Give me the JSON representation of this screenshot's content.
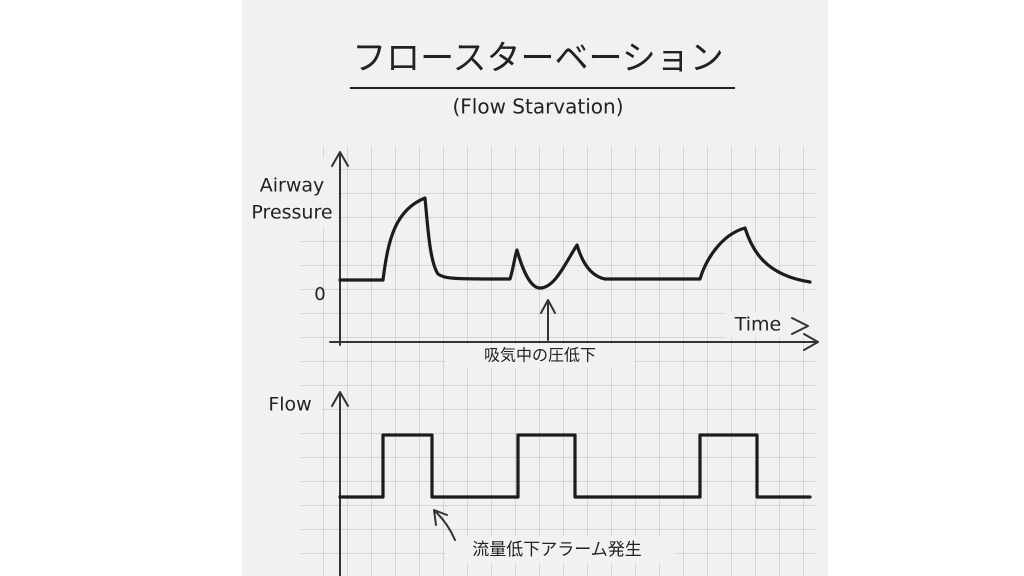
{
  "header": {
    "title": "フロースターベーション",
    "subtitle": "(Flow Starvation)"
  },
  "pressure_chart": {
    "y_label": [
      "Airway",
      "Pressure"
    ],
    "zero_label": "0",
    "x_label": "Time",
    "annotation": "吸気中の圧低下"
  },
  "flow_chart": {
    "y_label": "Flow",
    "annotation": "流量低下アラーム発生"
  }
}
